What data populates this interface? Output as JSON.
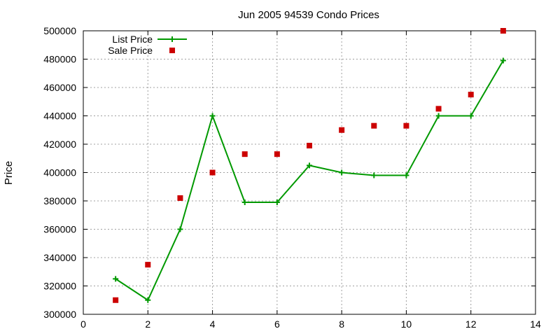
{
  "chart_data": {
    "type": "line",
    "title": "Jun 2005 94539 Condo Prices",
    "xlabel": "",
    "ylabel": "Price",
    "xlim": [
      0,
      14
    ],
    "ylim": [
      300000,
      500000
    ],
    "x_ticks": [
      "0",
      "2",
      "4",
      "6",
      "8",
      "10",
      "12",
      "14"
    ],
    "y_ticks": [
      "300000",
      "320000",
      "340000",
      "360000",
      "380000",
      "400000",
      "420000",
      "440000",
      "460000",
      "480000",
      "500000"
    ],
    "grid": true,
    "legend_position": "top-left",
    "x": [
      1,
      2,
      3,
      4,
      5,
      6,
      7,
      8,
      9,
      10,
      11,
      12,
      13
    ],
    "series": [
      {
        "name": "List Price",
        "style": "lines-points",
        "marker": "plus",
        "color": "#009900",
        "values": [
          325000,
          310000,
          360000,
          440000,
          379000,
          379000,
          405000,
          400000,
          398000,
          398000,
          440000,
          440000,
          479000
        ]
      },
      {
        "name": "Sale Price",
        "style": "points",
        "marker": "square",
        "color": "#cc0000",
        "values": [
          310000,
          335000,
          382000,
          400000,
          413000,
          413000,
          419000,
          430000,
          433000,
          433000,
          445000,
          455000,
          500000
        ]
      }
    ]
  }
}
